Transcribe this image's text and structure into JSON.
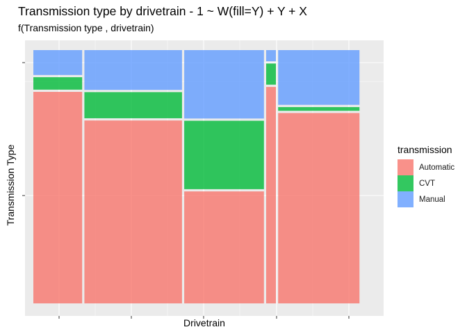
{
  "chart_data": {
    "type": "mosaic",
    "title": "Transmission type by drivetrain - 1 ~ W(fill=Y) + Y + X",
    "subtitle": "f(Transmission type , drivetrain)",
    "xlabel": "Drivetrain",
    "ylabel": "Transmission Type",
    "grid": true,
    "legend_title": "transmission",
    "legend_position": "right",
    "levels": [
      {
        "name": "Automatic",
        "color": "#F8766D"
      },
      {
        "name": "CVT",
        "color": "#00BA38"
      },
      {
        "name": "Manual",
        "color": "#619CFF"
      }
    ],
    "columns": [
      {
        "width": 0.15,
        "proportions": [
          0.85,
          0.05,
          0.1
        ]
      },
      {
        "width": 0.3,
        "proportions": [
          0.735,
          0.105,
          0.16
        ]
      },
      {
        "width": 0.245,
        "proportions": [
          0.45,
          0.275,
          0.275
        ]
      },
      {
        "width": 0.03,
        "proportions": [
          0.87,
          0.085,
          0.045
        ]
      },
      {
        "width": 0.25,
        "proportions": [
          0.765,
          0.015,
          0.22
        ]
      }
    ]
  }
}
